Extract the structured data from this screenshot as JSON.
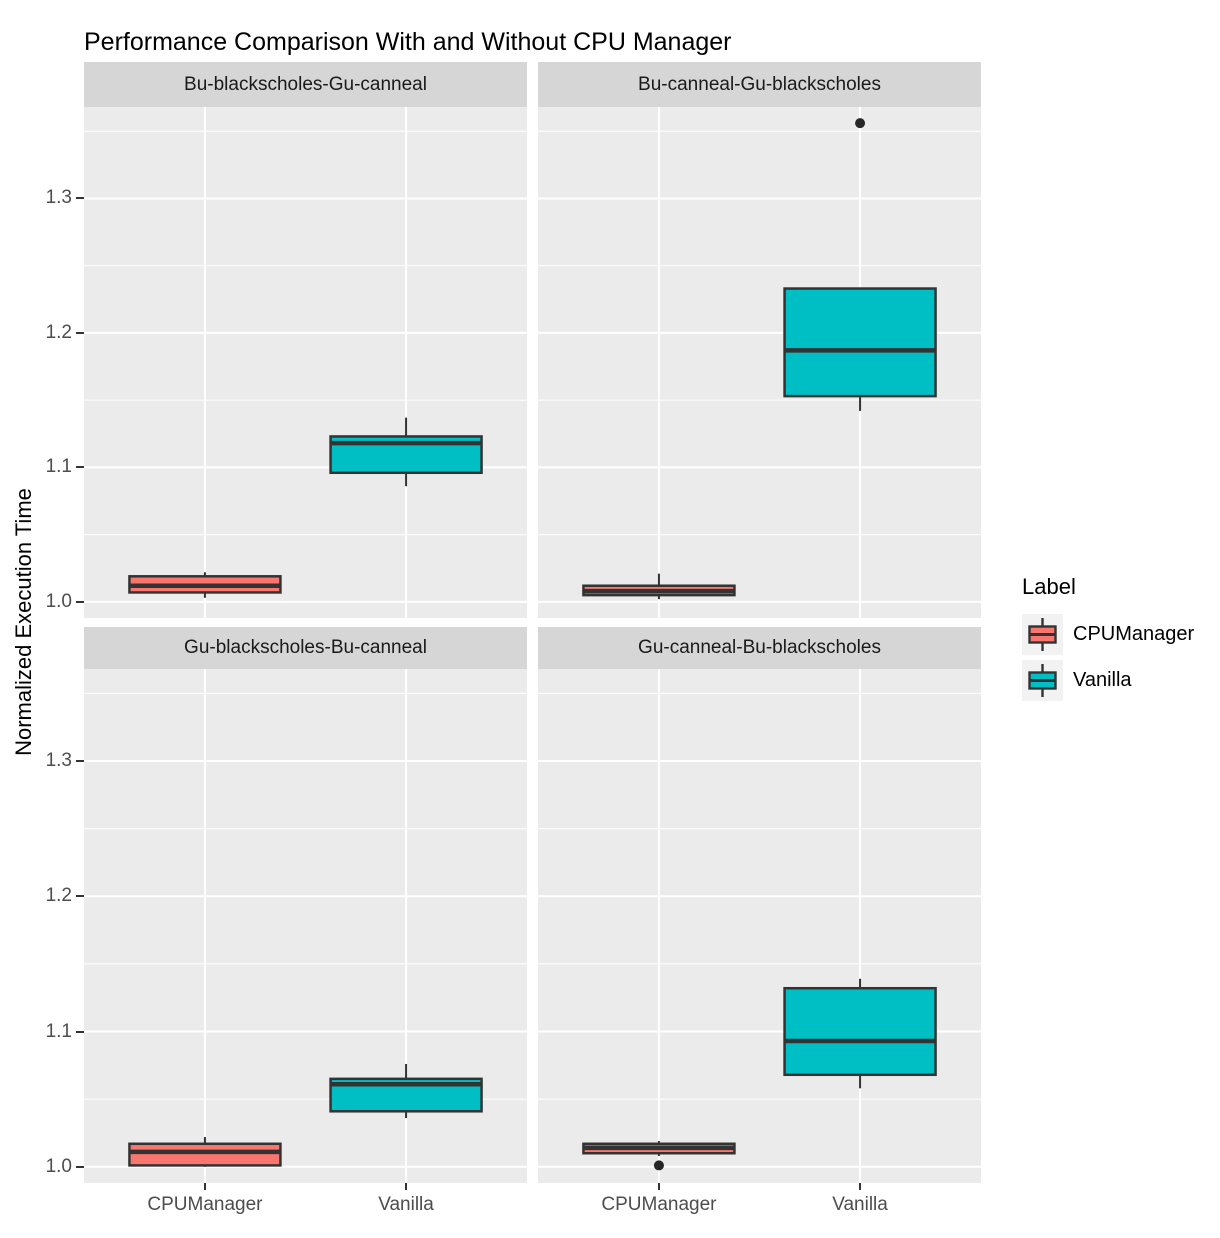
{
  "chart_data": {
    "type": "boxplot",
    "title": "Performance Comparison With and Without CPU Manager",
    "ylabel": "Normalized Execution Time",
    "xlabel": "",
    "x_categories": [
      "CPUManager",
      "Vanilla"
    ],
    "y_ticks": [
      1.0,
      1.1,
      1.2,
      1.3
    ],
    "y_minor_ticks": [
      1.05,
      1.15,
      1.25,
      1.35
    ],
    "ylim": [
      0.988,
      1.368
    ],
    "grid": "white-on-grey, major and minor horizontal, major vertical at categories",
    "legend": {
      "title": "Label",
      "position": "right",
      "entries": [
        {
          "label": "CPUManager",
          "color": "#F8766D"
        },
        {
          "label": "Vanilla",
          "color": "#00BFC4"
        }
      ]
    },
    "colors": {
      "CPUManager": "#F8766D",
      "Vanilla": "#00BFC4"
    },
    "style": {
      "panel_bg": "#EBEBEB",
      "strip_bg": "#D6D6D6",
      "grid_color": "#FFFFFF",
      "box_stroke": "#333333",
      "outlier_color": "#262626",
      "tick_label_color": "#4D4D4D"
    },
    "facets": [
      {
        "title": "Bu-blackscholes-Gu-canneal",
        "boxes": [
          {
            "group": "CPUManager",
            "min": 1.003,
            "q1": 1.007,
            "median": 1.012,
            "q3": 1.019,
            "max": 1.022,
            "outliers": []
          },
          {
            "group": "Vanilla",
            "min": 1.086,
            "q1": 1.096,
            "median": 1.118,
            "q3": 1.123,
            "max": 1.137,
            "outliers": []
          }
        ]
      },
      {
        "title": "Bu-canneal-Gu-blackscholes",
        "boxes": [
          {
            "group": "CPUManager",
            "min": 1.002,
            "q1": 1.005,
            "median": 1.008,
            "q3": 1.012,
            "max": 1.021,
            "outliers": []
          },
          {
            "group": "Vanilla",
            "min": 1.142,
            "q1": 1.153,
            "median": 1.187,
            "q3": 1.233,
            "max": 1.233,
            "outliers": [
              1.356
            ]
          }
        ]
      },
      {
        "title": "Gu-blackscholes-Bu-canneal",
        "boxes": [
          {
            "group": "CPUManager",
            "min": 1.0,
            "q1": 1.001,
            "median": 1.011,
            "q3": 1.017,
            "max": 1.022,
            "outliers": []
          },
          {
            "group": "Vanilla",
            "min": 1.036,
            "q1": 1.041,
            "median": 1.061,
            "q3": 1.065,
            "max": 1.076,
            "outliers": []
          }
        ]
      },
      {
        "title": "Gu-canneal-Bu-blackscholes",
        "boxes": [
          {
            "group": "CPUManager",
            "min": 1.008,
            "q1": 1.01,
            "median": 1.014,
            "q3": 1.017,
            "max": 1.019,
            "outliers": [
              1.001
            ]
          },
          {
            "group": "Vanilla",
            "min": 1.058,
            "q1": 1.068,
            "median": 1.093,
            "q3": 1.132,
            "max": 1.139,
            "outliers": []
          }
        ]
      }
    ]
  }
}
